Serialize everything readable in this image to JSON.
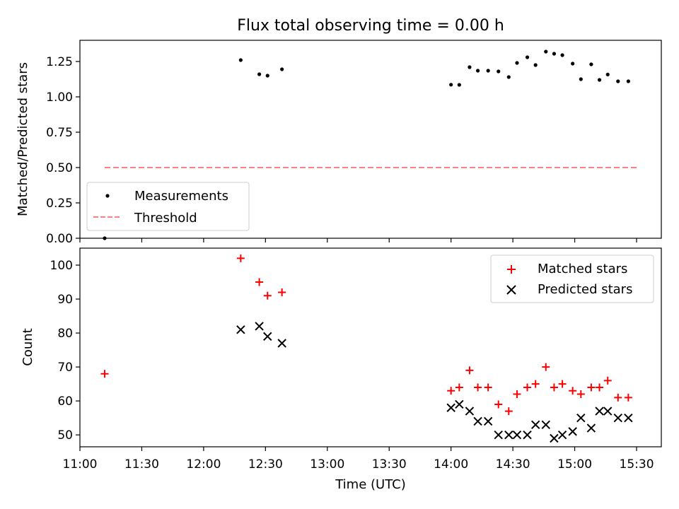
{
  "chart_data": [
    {
      "type": "scatter",
      "title": "Flux total observing time = 0.00 h",
      "xlabel": "",
      "ylabel": "Matched/Predicted stars",
      "xlim": [
        0,
        282
      ],
      "ylim": [
        0.0,
        1.4
      ],
      "yticks": [
        0.0,
        0.25,
        0.5,
        0.75,
        1.0,
        1.25
      ],
      "ytick_labels": [
        "0.00",
        "0.25",
        "0.50",
        "0.75",
        "1.00",
        "1.25"
      ],
      "grid": false,
      "legend_location": "lower-left",
      "series": [
        {
          "name": "Measurements",
          "kind": "dots",
          "color": "#000000",
          "x": [
            12,
            78,
            87,
            91,
            98,
            180,
            184,
            189,
            193,
            198,
            203,
            208,
            212,
            217,
            221,
            226,
            230,
            234,
            239,
            243,
            248,
            252,
            256,
            261,
            266
          ],
          "y": [
            0.0,
            1.26,
            1.16,
            1.15,
            1.195,
            1.086,
            1.085,
            1.21,
            1.185,
            1.185,
            1.18,
            1.14,
            1.24,
            1.28,
            1.225,
            1.32,
            1.305,
            1.295,
            1.235,
            1.125,
            1.23,
            1.12,
            1.158,
            1.11,
            1.11
          ]
        },
        {
          "name": "Threshold",
          "kind": "dashed-line",
          "color": "#ff8080",
          "x": [
            12,
            270
          ],
          "y": [
            0.5,
            0.5
          ]
        }
      ]
    },
    {
      "type": "scatter",
      "title": "",
      "xlabel": "Time (UTC)",
      "ylabel": "Count",
      "xlim": [
        0,
        282
      ],
      "ylim": [
        46.5,
        105
      ],
      "yticks": [
        50,
        60,
        70,
        80,
        90,
        100
      ],
      "ytick_labels": [
        "50",
        "60",
        "70",
        "80",
        "90",
        "100"
      ],
      "xticks": [
        0,
        30,
        60,
        90,
        120,
        150,
        180,
        210,
        240,
        270
      ],
      "xtick_labels": [
        "11:00",
        "11:30",
        "12:00",
        "12:30",
        "13:00",
        "13:30",
        "14:00",
        "14:30",
        "15:00",
        "15:30"
      ],
      "grid": false,
      "legend_location": "top-right",
      "series": [
        {
          "name": "Matched stars",
          "marker": "plus",
          "color": "#ff0000",
          "x": [
            12,
            78,
            87,
            91,
            98,
            180,
            184,
            189,
            193,
            198,
            203,
            208,
            212,
            217,
            221,
            226,
            230,
            234,
            239,
            243,
            248,
            252,
            256,
            261,
            266
          ],
          "y": [
            68,
            102,
            95,
            91,
            92,
            63,
            64,
            69,
            64,
            64,
            59,
            57,
            62,
            64,
            65,
            70,
            64,
            65,
            63,
            62,
            64,
            64,
            66,
            61,
            61
          ]
        },
        {
          "name": "Predicted stars",
          "marker": "x",
          "color": "#000000",
          "x": [
            78,
            87,
            91,
            98,
            180,
            184,
            189,
            193,
            198,
            203,
            208,
            212,
            217,
            221,
            226,
            230,
            234,
            239,
            243,
            248,
            252,
            256,
            261,
            266
          ],
          "y": [
            81,
            82,
            79,
            77,
            58,
            59,
            57,
            54,
            54,
            50,
            50,
            50,
            50,
            53,
            53,
            49,
            50,
            51,
            55,
            52,
            57,
            57,
            55,
            55
          ]
        }
      ]
    }
  ]
}
